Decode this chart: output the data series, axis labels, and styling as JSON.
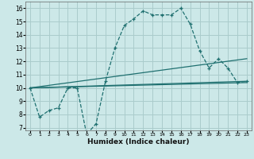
{
  "xlabel": "Humidex (Indice chaleur)",
  "background_color": "#cce8e8",
  "grid_color": "#aacccc",
  "line_color": "#1f7070",
  "hours": [
    0,
    1,
    2,
    3,
    4,
    5,
    6,
    7,
    8,
    9,
    10,
    11,
    12,
    13,
    14,
    15,
    16,
    17,
    18,
    19,
    20,
    21,
    22,
    23
  ],
  "series_main": [
    10.0,
    7.8,
    8.3,
    8.5,
    10.0,
    10.0,
    6.5,
    7.3,
    10.5,
    13.0,
    14.7,
    15.2,
    15.8,
    15.5,
    15.5,
    15.5,
    16.0,
    14.8,
    12.8,
    11.5,
    12.2,
    11.5,
    10.4,
    10.5
  ],
  "line1": [
    [
      0,
      10.0
    ],
    [
      23,
      10.5
    ]
  ],
  "line2": [
    [
      0,
      10.0
    ],
    [
      23,
      10.4
    ]
  ],
  "line3": [
    [
      0,
      10.0
    ],
    [
      23,
      12.2
    ]
  ],
  "ylim": [
    6.8,
    16.5
  ],
  "yticks": [
    7,
    8,
    9,
    10,
    11,
    12,
    13,
    14,
    15,
    16
  ],
  "xticks": [
    0,
    1,
    2,
    3,
    4,
    5,
    6,
    7,
    8,
    9,
    10,
    11,
    12,
    13,
    14,
    15,
    16,
    17,
    18,
    19,
    20,
    21,
    22,
    23
  ]
}
